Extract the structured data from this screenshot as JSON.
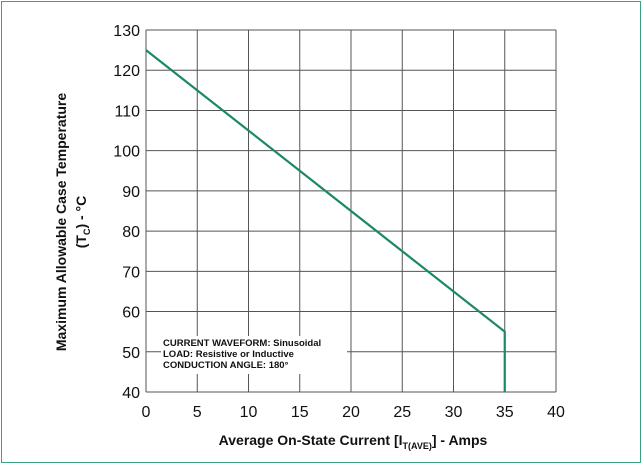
{
  "chart_data": {
    "type": "line",
    "title": "",
    "xlabel": {
      "main": "Average On-State Current [I",
      "sub": "T(AVE)",
      "tail": "] - Amps"
    },
    "ylabel": {
      "line1": "Maximum Allowable Case Temperature",
      "line2_main": "(T",
      "line2_sub": "C",
      "line2_tail": ") - °C"
    },
    "xlim": [
      0,
      40
    ],
    "ylim": [
      40,
      130
    ],
    "xticks": [
      0,
      5,
      10,
      15,
      20,
      25,
      30,
      35,
      40
    ],
    "yticks": [
      40,
      50,
      60,
      70,
      80,
      90,
      100,
      110,
      120,
      130
    ],
    "grid": true,
    "series": [
      {
        "color": "#1b8a5e",
        "points": [
          [
            0,
            125
          ],
          [
            35,
            55
          ],
          [
            35,
            40
          ]
        ]
      }
    ],
    "annotations": [
      "CURRENT WAVEFORM: Sinusoidal",
      "LOAD: Resistive or Inductive",
      "CONDUCTION ANGLE: 180°"
    ]
  },
  "colors": {
    "frame": "#3aa27a",
    "grid": "#555555",
    "line": "#1b8a5e"
  }
}
